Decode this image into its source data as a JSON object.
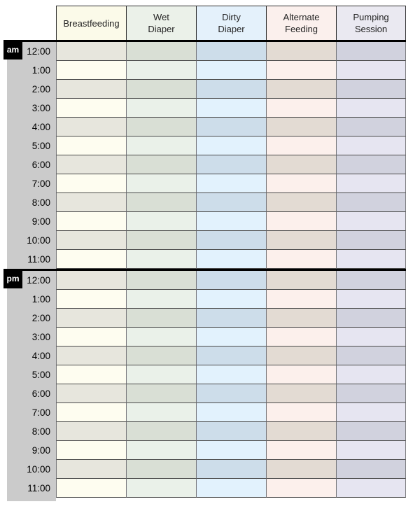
{
  "page": {
    "background": "#ffffff"
  },
  "table": {
    "columns": [
      {
        "id": "breastfeeding",
        "label": "Breastfeeding",
        "header_bg": "#fbfae9",
        "light_bg": "#fefdf0",
        "dark_bg": "#e7e6dd"
      },
      {
        "id": "wet-diaper",
        "label": "Wet Diaper",
        "header_bg": "#ebf1e9",
        "light_bg": "#eaf1e9",
        "dark_bg": "#d9dfd5"
      },
      {
        "id": "dirty-diaper",
        "label": "Dirty Diaper",
        "header_bg": "#e4f1fb",
        "light_bg": "#e2f2fd",
        "dark_bg": "#cdddea"
      },
      {
        "id": "alternate-feeding",
        "label": "Alternate Feeding",
        "header_bg": "#fbf0ed",
        "light_bg": "#fcf0ec",
        "dark_bg": "#e3dbd3"
      },
      {
        "id": "pumping-session",
        "label": "Pumping Session",
        "header_bg": "#eae9f1",
        "light_bg": "#e6e5f1",
        "dark_bg": "#d1d2de"
      }
    ],
    "sections": [
      {
        "badge": "am",
        "hours": [
          "12:00",
          "1:00",
          "2:00",
          "3:00",
          "4:00",
          "5:00",
          "6:00",
          "7:00",
          "8:00",
          "9:00",
          "10:00",
          "11:00"
        ]
      },
      {
        "badge": "pm",
        "hours": [
          "12:00",
          "1:00",
          "2:00",
          "3:00",
          "4:00",
          "5:00",
          "6:00",
          "7:00",
          "8:00",
          "9:00",
          "10:00",
          "11:00"
        ]
      }
    ],
    "style": {
      "time_col_bg": "#cbcbcb",
      "badge_bg": "#000000",
      "badge_text_color": "#ffffff",
      "divider_color": "#000000",
      "header_border_color": "#2e2e2e",
      "row_border_color": "#4a4a4a",
      "col_border_color": "#77777b",
      "header_text_color": "#222222",
      "time_text_color": "#000000"
    }
  }
}
